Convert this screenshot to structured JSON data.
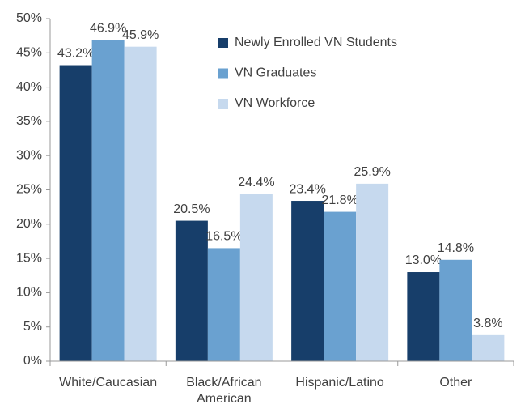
{
  "chart_data": {
    "type": "bar",
    "categories": [
      "White/Caucasian",
      "Black/African American",
      "Hispanic/Latino",
      "Other"
    ],
    "series": [
      {
        "name": "Newly Enrolled VN Students",
        "color": "#173e6a",
        "values": [
          43.2,
          20.5,
          23.4,
          13.0
        ],
        "value_labels": [
          "43.2%",
          "20.5%",
          "23.4%",
          "13.0%"
        ]
      },
      {
        "name": "VN Graduates",
        "color": "#6aa1d0",
        "values": [
          46.9,
          16.5,
          21.8,
          14.8
        ],
        "value_labels": [
          "46.9%",
          "16.5%",
          "21.8%",
          "14.8%"
        ]
      },
      {
        "name": "VN Workforce",
        "color": "#c6d9ee",
        "values": [
          45.9,
          24.4,
          25.9,
          3.8
        ],
        "value_labels": [
          "45.9%",
          "24.4%",
          "25.9%",
          "3.8%"
        ]
      }
    ],
    "ylim": [
      0,
      50
    ],
    "yticks": [
      {
        "value": 0,
        "label": "0%"
      },
      {
        "value": 5,
        "label": "5%"
      },
      {
        "value": 10,
        "label": "10%"
      },
      {
        "value": 15,
        "label": "15%"
      },
      {
        "value": 20,
        "label": "20%"
      },
      {
        "value": 25,
        "label": "25%"
      },
      {
        "value": 30,
        "label": "30%"
      },
      {
        "value": 35,
        "label": "35%"
      },
      {
        "value": 40,
        "label": "40%"
      },
      {
        "value": 45,
        "label": "45%"
      },
      {
        "value": 50,
        "label": "50%"
      }
    ],
    "grid": false,
    "legend": "top-right"
  }
}
